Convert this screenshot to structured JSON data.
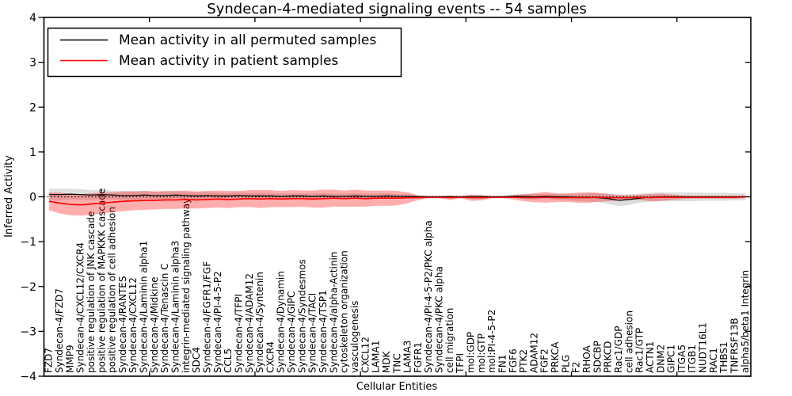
{
  "figure": {
    "background": "#ffffff",
    "frame_color": "#000000"
  },
  "chart_data": {
    "type": "line",
    "title": "Syndecan-4-mediated signaling events -- 54 samples",
    "xlabel": "Cellular Entities",
    "ylabel": "Inferred Activity",
    "ylim": [
      -4,
      4
    ],
    "yticks": [
      4,
      3,
      2,
      1,
      0,
      -1,
      -2,
      -3,
      -4
    ],
    "x_major_tick_entity_positions": [
      10,
      20,
      30,
      40,
      50,
      60
    ],
    "grid": false,
    "zero_line": {
      "y": 0,
      "color": "#000000",
      "style": "dotted"
    },
    "legend": {
      "position": "upper left"
    },
    "categories": [
      "FZD7",
      "Syndecan-4/FZD7",
      "MMP9",
      "Syndecan-4/CXCL12/CXCR4",
      "positive regulation of JNK cascade",
      "positive regulation of MAPKKK cascade",
      "positive regulation of cell adhesion",
      "Syndecan-4/RANTES",
      "Syndecan-4/CXCL12",
      "Syndecan-4/Laminin alpha1",
      "Syndecan-4/Midkine",
      "Syndecan-4/Tenascin C",
      "Syndecan-4/Laminin alpha3",
      "integrin-mediated signaling pathway",
      "SDC4",
      "Syndecan-4/FGFR1/FGF",
      "Syndecan-4/PI-4-5-P2",
      "CCL5",
      "Syndecan-4/TFPI",
      "Syndecan-4/ADAM12",
      "Syndecan-4/Syntenin",
      "CXCR4",
      "Syndecan-4/Dynamin",
      "Syndecan-4/GIPC",
      "Syndecan-4/Syndesmos",
      "Syndecan-4/TACI",
      "Syndecan-4/TSP1",
      "Syndecan-4/alpha-Actinin",
      "cytoskeleton organization",
      "vasculogenesis",
      "CXCL12",
      "LAMA1",
      "MDK",
      "TNC",
      "LAMA3",
      "FGFR1",
      "Syndecan-4/PI-4-5-P2/PKC alpha",
      "Syndecan-4/PKC alpha",
      "cell migration",
      "TFPI",
      "mol:GDP",
      "mol:GTP",
      "mol:PI-4-5-P2",
      "FN1",
      "FGF6",
      "PTK2",
      "ADAM12",
      "FGF2",
      "PRKCA",
      "PLG",
      "F2",
      "RHOA",
      "SDCBP",
      "PRKCD",
      "Rac1/GDP",
      "cell adhesion",
      "Rac1/GTP",
      "ACTN1",
      "DNM2",
      "GIPC1",
      "ITGA5",
      "ITGB1",
      "NUDT16L1",
      "RAC1",
      "THBS1",
      "TNFRSF13B",
      "alpha5/beta1 Integrin"
    ],
    "series": [
      {
        "name": "Mean activity in all permuted samples",
        "color": "#000000",
        "band_color": "rgba(0,0,0,0.13)",
        "values": [
          0.05,
          0.05,
          0.06,
          0.05,
          0.04,
          0.05,
          0.04,
          0.03,
          0.03,
          0.04,
          0.03,
          0.03,
          0.04,
          0.03,
          0.02,
          0.03,
          0.02,
          0.02,
          0.03,
          0.02,
          0.02,
          0.02,
          0.01,
          0.02,
          0.02,
          0.01,
          0.02,
          0.01,
          0.01,
          0.02,
          0.01,
          0.01,
          0.02,
          0.01,
          0.01,
          0.0,
          0.0,
          0.0,
          0.0,
          0.0,
          0.0,
          0.0,
          0.0,
          0.0,
          0.01,
          0.01,
          0.0,
          0.01,
          0.0,
          0.0,
          -0.01,
          -0.01,
          -0.02,
          -0.04,
          -0.08,
          -0.06,
          -0.03,
          -0.01,
          0.0,
          0.0,
          0.0,
          0.0,
          0.0,
          0.0,
          0.0,
          0.0,
          0.0
        ],
        "band_hi": [
          0.18,
          0.18,
          0.18,
          0.17,
          0.15,
          0.16,
          0.14,
          0.13,
          0.13,
          0.13,
          0.12,
          0.12,
          0.12,
          0.11,
          0.1,
          0.11,
          0.09,
          0.09,
          0.1,
          0.09,
          0.09,
          0.09,
          0.07,
          0.08,
          0.08,
          0.07,
          0.08,
          0.07,
          0.07,
          0.08,
          0.07,
          0.07,
          0.08,
          0.06,
          0.06,
          0.04,
          0.03,
          0.03,
          0.03,
          0.03,
          0.04,
          0.04,
          0.03,
          0.03,
          0.05,
          0.06,
          0.06,
          0.07,
          0.06,
          0.07,
          0.07,
          0.08,
          0.08,
          0.08,
          0.05,
          0.06,
          0.07,
          0.09,
          0.1,
          0.1,
          0.1,
          0.1,
          0.09,
          0.09,
          0.09,
          0.08,
          0.08
        ],
        "band_lo": [
          -0.08,
          -0.08,
          -0.06,
          -0.07,
          -0.07,
          -0.06,
          -0.06,
          -0.07,
          -0.07,
          -0.05,
          -0.06,
          -0.06,
          -0.04,
          -0.05,
          -0.06,
          -0.05,
          -0.05,
          -0.05,
          -0.04,
          -0.05,
          -0.05,
          -0.05,
          -0.05,
          -0.04,
          -0.04,
          -0.05,
          -0.04,
          -0.05,
          -0.05,
          -0.04,
          -0.05,
          -0.05,
          -0.04,
          -0.04,
          -0.04,
          -0.04,
          -0.03,
          -0.03,
          -0.03,
          -0.03,
          -0.04,
          -0.04,
          -0.03,
          -0.03,
          -0.03,
          -0.04,
          -0.06,
          -0.05,
          -0.06,
          -0.07,
          -0.09,
          -0.1,
          -0.12,
          -0.16,
          -0.21,
          -0.18,
          -0.13,
          -0.11,
          -0.1,
          -0.1,
          -0.1,
          -0.1,
          -0.09,
          -0.09,
          -0.09,
          -0.08,
          -0.08
        ]
      },
      {
        "name": "Mean activity in patient samples",
        "color": "#ff0000",
        "band_color": "rgba(255,0,0,0.32)",
        "values": [
          -0.1,
          -0.14,
          -0.17,
          -0.18,
          -0.16,
          -0.14,
          -0.12,
          -0.1,
          -0.09,
          -0.08,
          -0.08,
          -0.07,
          -0.07,
          -0.06,
          -0.07,
          -0.06,
          -0.05,
          -0.06,
          -0.05,
          -0.04,
          -0.05,
          -0.04,
          -0.05,
          -0.04,
          -0.04,
          -0.05,
          -0.04,
          -0.03,
          -0.04,
          -0.03,
          -0.04,
          -0.03,
          -0.03,
          -0.03,
          -0.02,
          -0.02,
          -0.01,
          -0.01,
          -0.02,
          -0.01,
          -0.02,
          -0.02,
          -0.01,
          -0.01,
          -0.01,
          -0.02,
          -0.02,
          -0.01,
          -0.02,
          -0.02,
          -0.02,
          -0.02,
          -0.01,
          -0.02,
          -0.02,
          -0.02,
          -0.01,
          -0.02,
          -0.01,
          -0.01,
          -0.01,
          -0.01,
          -0.01,
          -0.01,
          -0.01,
          -0.01,
          0.0
        ],
        "band_hi": [
          0.1,
          0.09,
          0.07,
          0.06,
          0.08,
          0.09,
          0.1,
          0.12,
          0.12,
          0.13,
          0.12,
          0.13,
          0.13,
          0.14,
          0.12,
          0.13,
          0.14,
          0.13,
          0.13,
          0.15,
          0.15,
          0.15,
          0.13,
          0.15,
          0.14,
          0.14,
          0.16,
          0.16,
          0.14,
          0.16,
          0.14,
          0.14,
          0.14,
          0.13,
          0.1,
          0.03,
          0.01,
          0.01,
          0.03,
          0.01,
          0.05,
          0.04,
          0.01,
          0.01,
          0.04,
          0.06,
          0.08,
          0.11,
          0.08,
          0.07,
          0.09,
          0.1,
          0.09,
          0.06,
          0.04,
          0.03,
          0.05,
          0.06,
          0.07,
          0.05,
          0.03,
          0.02,
          0.02,
          0.02,
          0.02,
          0.02,
          0.03
        ],
        "band_lo": [
          -0.3,
          -0.37,
          -0.41,
          -0.42,
          -0.4,
          -0.37,
          -0.34,
          -0.32,
          -0.3,
          -0.29,
          -0.28,
          -0.27,
          -0.27,
          -0.26,
          -0.26,
          -0.25,
          -0.24,
          -0.25,
          -0.23,
          -0.23,
          -0.25,
          -0.23,
          -0.23,
          -0.23,
          -0.22,
          -0.24,
          -0.24,
          -0.22,
          -0.22,
          -0.22,
          -0.22,
          -0.2,
          -0.2,
          -0.19,
          -0.14,
          -0.07,
          -0.03,
          -0.03,
          -0.07,
          -0.03,
          -0.09,
          -0.08,
          -0.03,
          -0.03,
          -0.06,
          -0.1,
          -0.12,
          -0.13,
          -0.12,
          -0.11,
          -0.13,
          -0.14,
          -0.11,
          -0.1,
          -0.08,
          -0.07,
          -0.07,
          -0.1,
          -0.09,
          -0.07,
          -0.05,
          -0.04,
          -0.04,
          -0.04,
          -0.04,
          -0.04,
          -0.03
        ]
      }
    ]
  }
}
